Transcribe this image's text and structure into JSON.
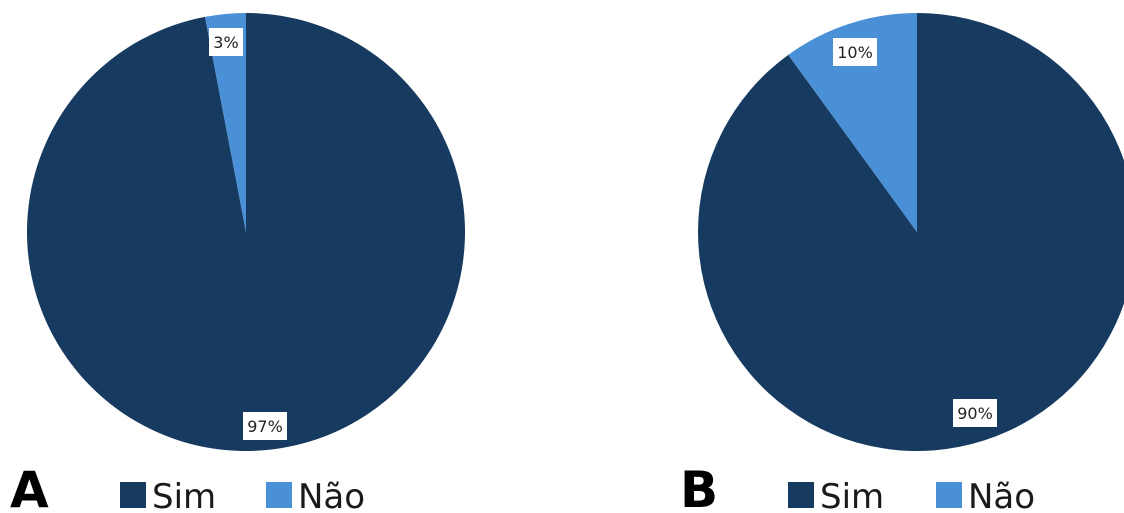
{
  "colors": {
    "sim": "#173b60",
    "nao": "#4a90d6",
    "background": "#ffffff"
  },
  "chart_data": [
    {
      "type": "pie",
      "panel": "A",
      "start_angle_deg": 0,
      "direction": "clockwise",
      "slices": [
        {
          "label": "Sim",
          "value": 97,
          "data_label": "97%",
          "color": "#173b60"
        },
        {
          "label": "Não",
          "value": 3,
          "data_label": "3%",
          "color": "#4a90d6"
        }
      ],
      "legend": {
        "placement": "bottom",
        "entries": [
          "Sim",
          "Não"
        ]
      }
    },
    {
      "type": "pie",
      "panel": "B",
      "start_angle_deg": 0,
      "direction": "clockwise",
      "slices": [
        {
          "label": "Sim",
          "value": 90,
          "data_label": "90%",
          "color": "#173b60"
        },
        {
          "label": "Não",
          "value": 10,
          "data_label": "10%",
          "color": "#4a90d6"
        }
      ],
      "legend": {
        "placement": "bottom",
        "entries": [
          "Sim",
          "Não"
        ]
      }
    }
  ]
}
